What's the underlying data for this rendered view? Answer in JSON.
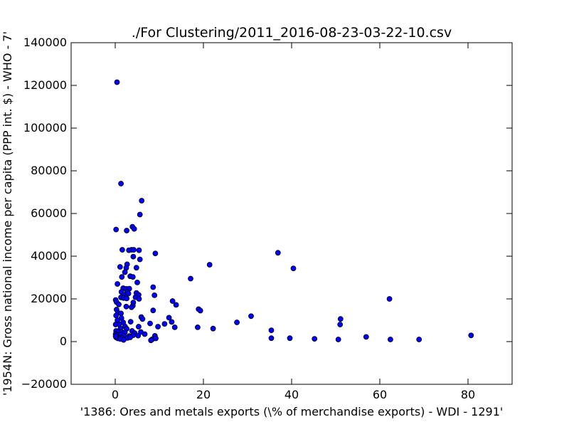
{
  "chart_data": {
    "type": "scatter",
    "title": "./For Clustering/2011_2016-08-23-03-22-10.csv",
    "xlabel": "'1386: Ores and metals exports  (\\% of merchandise exports) - WDI - 1291'",
    "ylabel": "'1954N: Gross national income per capita (PPP int. $) - WHO - 7'",
    "xlim": [
      -10,
      90
    ],
    "ylim": [
      -20000,
      140000
    ],
    "x_ticks": [
      0,
      20,
      40,
      60,
      80
    ],
    "y_ticks": [
      -20000,
      0,
      20000,
      40000,
      60000,
      80000,
      100000,
      120000,
      140000
    ],
    "x_tick_labels": [
      "0",
      "20",
      "40",
      "60",
      "80"
    ],
    "y_tick_labels": [
      "−20000",
      "0",
      "20000",
      "40000",
      "60000",
      "80000",
      "100000",
      "120000",
      "140000"
    ],
    "marker_color": "#0000ff",
    "grid": false,
    "points": [
      [
        0.4,
        121500
      ],
      [
        1.3,
        74000
      ],
      [
        6.0,
        66000
      ],
      [
        5.6,
        59500
      ],
      [
        0.2,
        52500
      ],
      [
        2.6,
        52000
      ],
      [
        3.9,
        53800
      ],
      [
        4.3,
        52800
      ],
      [
        1.6,
        43000
      ],
      [
        3.1,
        42800
      ],
      [
        3.7,
        43000
      ],
      [
        4.2,
        43000
      ],
      [
        5.4,
        42800
      ],
      [
        9.1,
        41300
      ],
      [
        36.9,
        41600
      ],
      [
        4.1,
        39800
      ],
      [
        5.6,
        38500
      ],
      [
        21.4,
        36000
      ],
      [
        2.7,
        36200
      ],
      [
        40.4,
        34300
      ],
      [
        1.1,
        35000
      ],
      [
        2.5,
        34500
      ],
      [
        4.8,
        34600
      ],
      [
        2.2,
        32500
      ],
      [
        1.5,
        30300
      ],
      [
        3.4,
        30600
      ],
      [
        4.0,
        30300
      ],
      [
        17.1,
        29500
      ],
      [
        0.5,
        27000
      ],
      [
        5.0,
        27700
      ],
      [
        8.6,
        25500
      ],
      [
        1.8,
        25000
      ],
      [
        2.5,
        24700
      ],
      [
        3.2,
        24800
      ],
      [
        1.4,
        23300
      ],
      [
        2.7,
        23300
      ],
      [
        1.9,
        21800
      ],
      [
        3.0,
        22500
      ],
      [
        4.8,
        22800
      ],
      [
        5.3,
        21900
      ],
      [
        8.9,
        21700
      ],
      [
        1.3,
        20700
      ],
      [
        1.9,
        20400
      ],
      [
        2.6,
        20200
      ],
      [
        4.6,
        20800
      ],
      [
        5.4,
        20000
      ],
      [
        62.2,
        20000
      ],
      [
        0.1,
        19500
      ],
      [
        0.3,
        18500
      ],
      [
        0.8,
        17400
      ],
      [
        4.1,
        18300
      ],
      [
        4.0,
        16800
      ],
      [
        13.0,
        19000
      ],
      [
        13.8,
        17200
      ],
      [
        2.5,
        16400
      ],
      [
        3.7,
        16100
      ],
      [
        8.6,
        14600
      ],
      [
        0.3,
        15000
      ],
      [
        0.6,
        13500
      ],
      [
        1.3,
        13200
      ],
      [
        18.9,
        15200
      ],
      [
        19.3,
        14500
      ],
      [
        12.2,
        11200
      ],
      [
        5.9,
        11500
      ],
      [
        6.2,
        10600
      ],
      [
        1.4,
        11000
      ],
      [
        30.8,
        11900
      ],
      [
        51.1,
        10600
      ],
      [
        0.2,
        12200
      ],
      [
        0.5,
        10000
      ],
      [
        1.8,
        9000
      ],
      [
        3.5,
        9300
      ],
      [
        12.8,
        9200
      ],
      [
        27.6,
        9000
      ],
      [
        51.0,
        8000
      ],
      [
        11.2,
        8300
      ],
      [
        0.1,
        8000
      ],
      [
        0.9,
        8100
      ],
      [
        2.2,
        7100
      ],
      [
        5.3,
        7000
      ],
      [
        7.9,
        8500
      ],
      [
        9.7,
        7000
      ],
      [
        13.5,
        6700
      ],
      [
        18.7,
        6700
      ],
      [
        22.2,
        6100
      ],
      [
        35.4,
        5300
      ],
      [
        1.2,
        6100
      ],
      [
        2.6,
        6000
      ],
      [
        3.8,
        5000
      ],
      [
        0.2,
        5000
      ],
      [
        0.7,
        4500
      ],
      [
        1.5,
        4500
      ],
      [
        2.2,
        4300
      ],
      [
        4.4,
        4000
      ],
      [
        5.8,
        4500
      ],
      [
        6.7,
        3500
      ],
      [
        0.1,
        3500
      ],
      [
        0.4,
        3000
      ],
      [
        1.3,
        3200
      ],
      [
        2.0,
        2800
      ],
      [
        3.2,
        2600
      ],
      [
        4.1,
        3000
      ],
      [
        5.2,
        2800
      ],
      [
        9.0,
        2700
      ],
      [
        0.2,
        2000
      ],
      [
        0.9,
        1800
      ],
      [
        1.6,
        1700
      ],
      [
        2.8,
        1700
      ],
      [
        3.4,
        2000
      ],
      [
        8.4,
        1100
      ],
      [
        9.2,
        1500
      ],
      [
        35.4,
        1600
      ],
      [
        39.6,
        1600
      ],
      [
        45.2,
        1300
      ],
      [
        50.6,
        1000
      ],
      [
        56.9,
        2200
      ],
      [
        62.4,
        1000
      ],
      [
        68.9,
        1000
      ],
      [
        80.7,
        2900
      ],
      [
        0.6,
        1500
      ],
      [
        1.2,
        1200
      ],
      [
        1.9,
        800
      ],
      [
        8.1,
        600
      ],
      [
        0.1,
        2500
      ]
    ]
  }
}
